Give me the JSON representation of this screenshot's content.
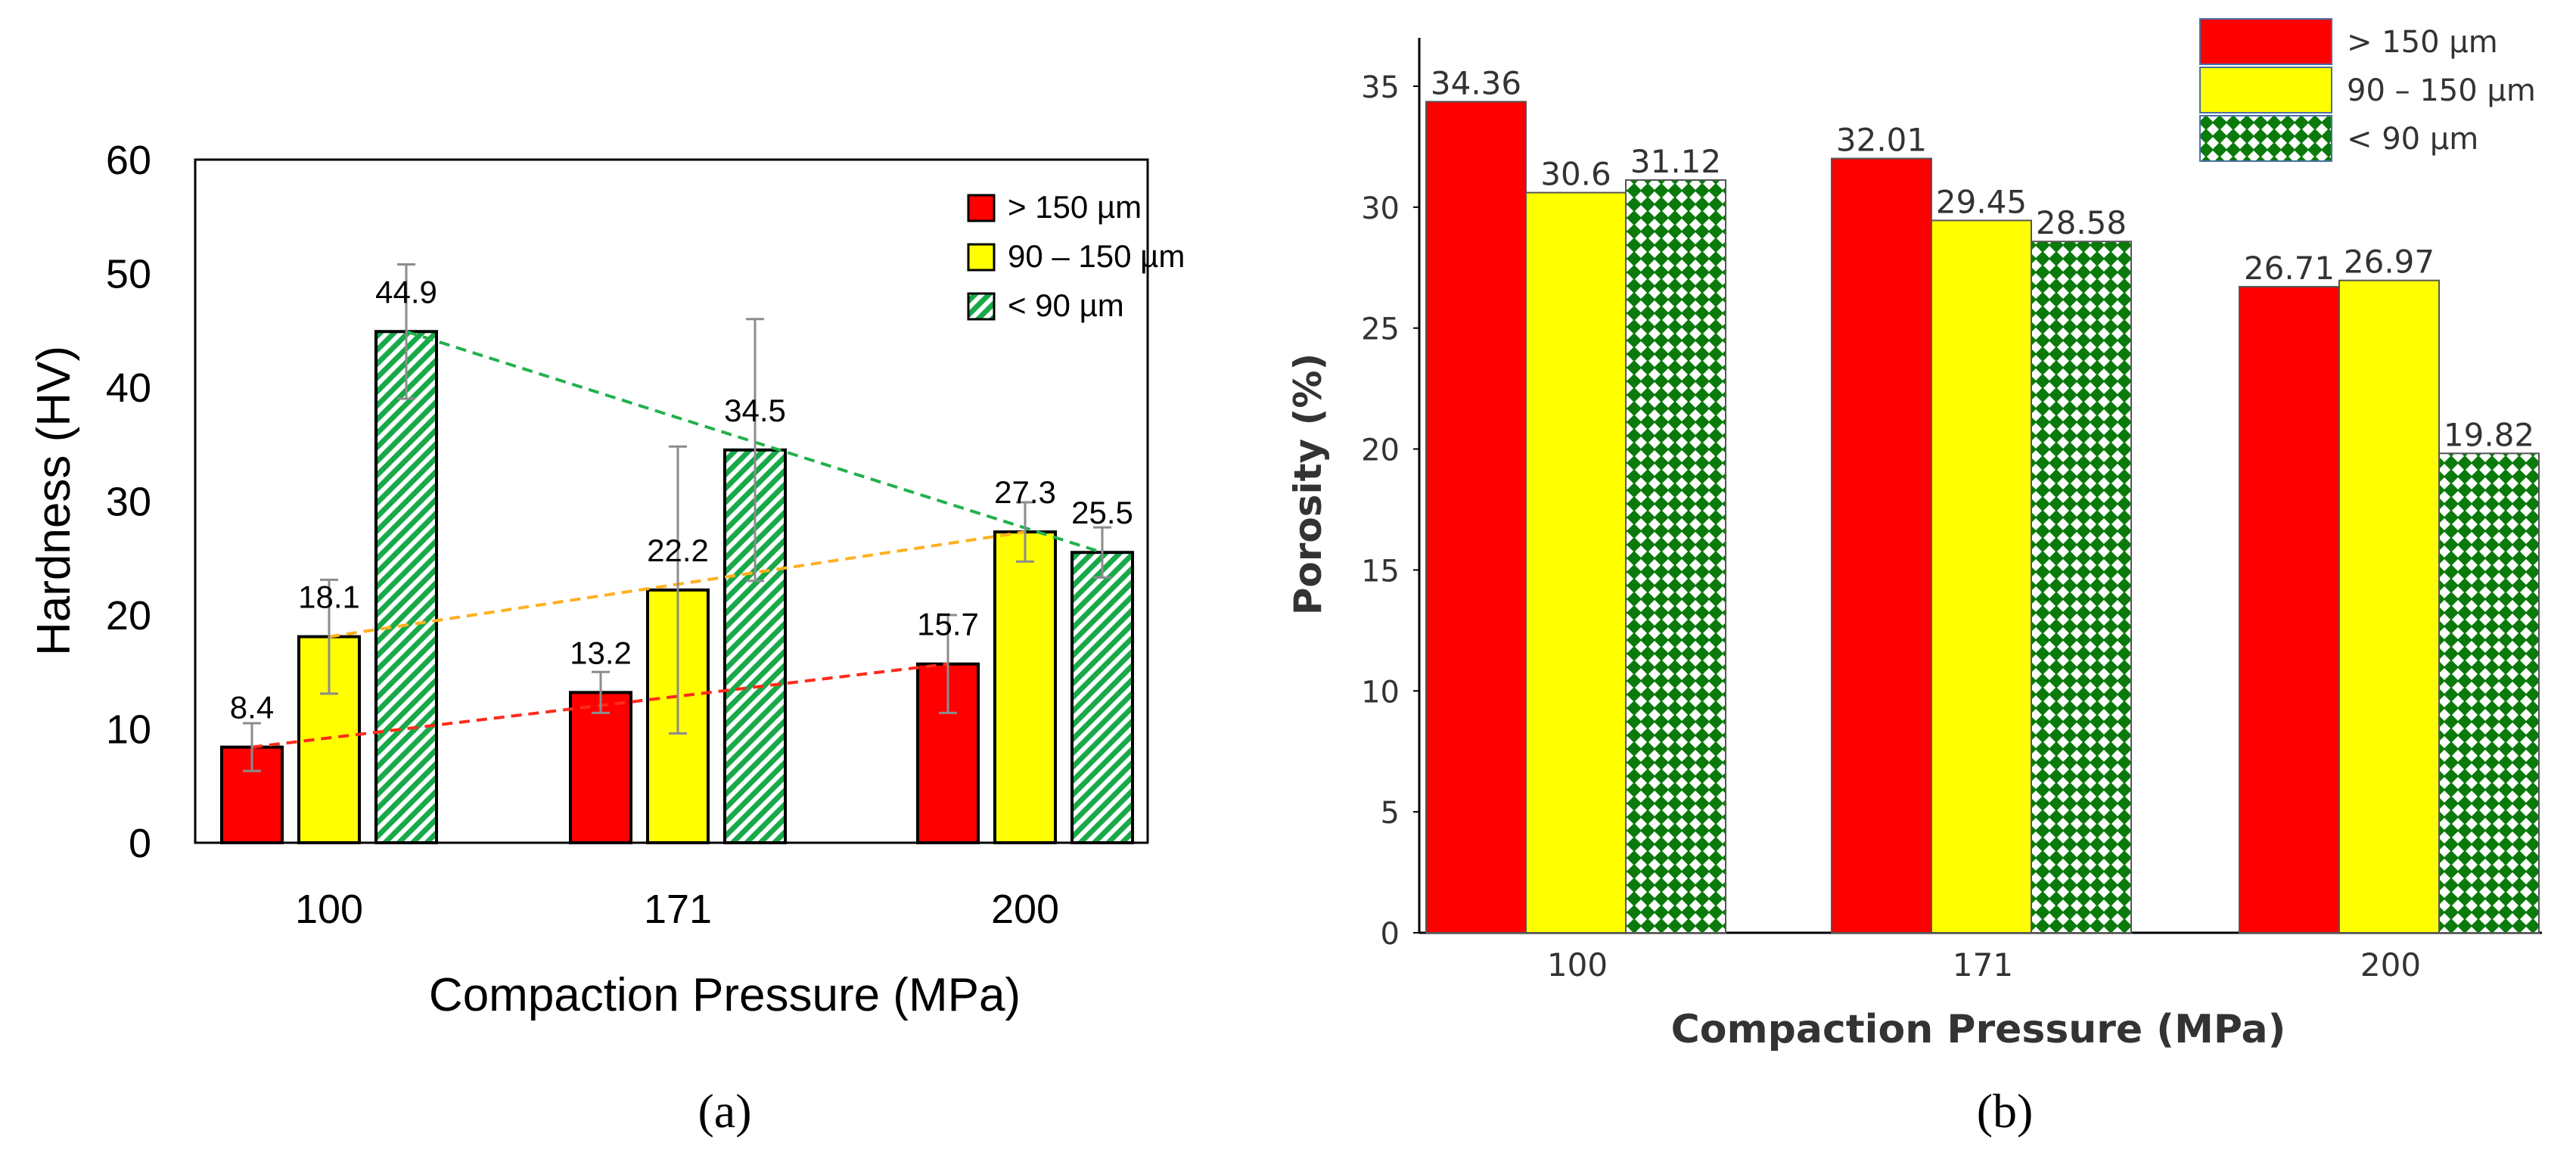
{
  "chart_data": [
    {
      "type": "bar",
      "categories": [
        "100",
        "171",
        "200"
      ],
      "xlabel": "Compaction Pressure (MPa)",
      "ylabel": "Hardness (HV)",
      "ylim": [
        0,
        60
      ],
      "yticks": [
        0,
        10,
        20,
        30,
        40,
        50,
        60
      ],
      "legend_position": "top-right",
      "grid": false,
      "series": [
        {
          "name": "> 150 µm",
          "color": "#ff0000",
          "values": [
            8.4,
            13.2,
            15.7
          ],
          "labels": [
            "8.4",
            "13.2",
            "15.7"
          ],
          "error": [
            2.1,
            1.8,
            4.3
          ]
        },
        {
          "name": "90 – 150 µm",
          "color": "#ffff00",
          "values": [
            18.1,
            22.2,
            27.3
          ],
          "labels": [
            "18.1",
            "22.2",
            "27.3"
          ],
          "error": [
            5.0,
            12.6,
            2.6
          ]
        },
        {
          "name": "< 90 µm",
          "color": "#19a94a",
          "pattern": "diagonal-hatch",
          "values": [
            44.9,
            34.5,
            25.5
          ],
          "labels": [
            "44.9",
            "34.5",
            "25.5"
          ],
          "error": [
            5.9,
            11.5,
            2.2
          ]
        }
      ],
      "trend_lines": [
        {
          "series": "> 150 µm",
          "color": "#ff2a1a",
          "style": "dashed"
        },
        {
          "series": "90 – 150 µm",
          "color": "#ffb020",
          "style": "dashed"
        },
        {
          "series": "< 90 µm",
          "color": "#22b14c",
          "style": "dashed"
        }
      ],
      "caption": "(a)"
    },
    {
      "type": "bar",
      "categories": [
        "100",
        "171",
        "200"
      ],
      "xlabel": "Compaction Pressure (MPa)",
      "ylabel": "Porosity (%)",
      "ylim": [
        0,
        37
      ],
      "yticks": [
        0,
        5,
        10,
        15,
        20,
        25,
        30,
        35
      ],
      "legend_position": "top-right",
      "grid": false,
      "series": [
        {
          "name": "> 150 µm",
          "color": "#ff0000",
          "values": [
            34.36,
            32.01,
            26.71
          ],
          "labels": [
            "34.36",
            "32.01",
            "26.71"
          ]
        },
        {
          "name": "90 – 150 µm",
          "color": "#ffff00",
          "values": [
            30.6,
            29.45,
            26.97
          ],
          "labels": [
            "30.6",
            "29.45",
            "26.97"
          ]
        },
        {
          "name": "< 90 µm",
          "color": "#0a7a0a",
          "pattern": "checkered-dots",
          "values": [
            31.12,
            28.58,
            19.82
          ],
          "labels": [
            "31.12",
            "28.58",
            "19.82"
          ]
        }
      ],
      "caption": "(b)"
    }
  ]
}
